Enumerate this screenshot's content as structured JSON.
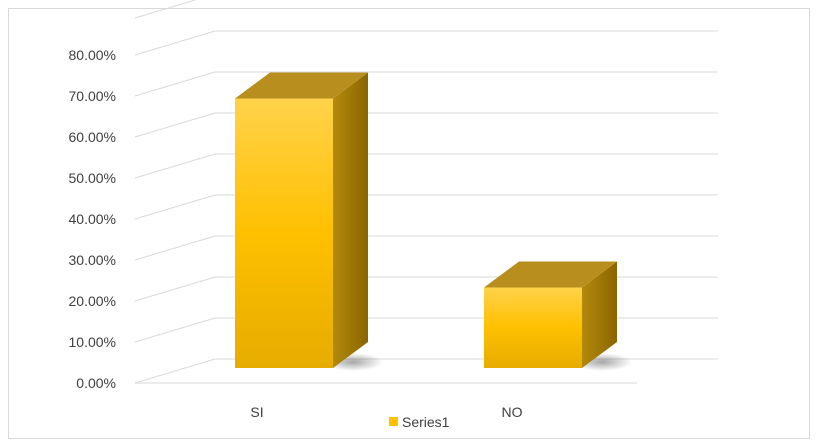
{
  "chart_data": {
    "type": "bar",
    "style": "3d-column",
    "categories": [
      "SI",
      "NO"
    ],
    "series": [
      {
        "name": "Series1",
        "values": [
          0.77,
          0.23
        ],
        "color": "#FFC000"
      }
    ],
    "ylim": [
      0,
      0.8
    ],
    "yticks": [
      0,
      0.1,
      0.2,
      0.3,
      0.4,
      0.5,
      0.6,
      0.7,
      0.8
    ],
    "ytick_labels": [
      "0.00%",
      "10.00%",
      "20.00%",
      "30.00%",
      "40.00%",
      "50.00%",
      "60.00%",
      "70.00%",
      "80.00%"
    ],
    "grid": true,
    "legend": "bottom",
    "title": "",
    "xlabel": "",
    "ylabel": ""
  },
  "colors": {
    "bar_front_top": "#FFD24A",
    "bar_front_bottom": "#E6AC00",
    "bar_side": "#A77C05",
    "bar_top": "#B88F1E",
    "grid": "#d9d9d9",
    "text": "#404040"
  }
}
